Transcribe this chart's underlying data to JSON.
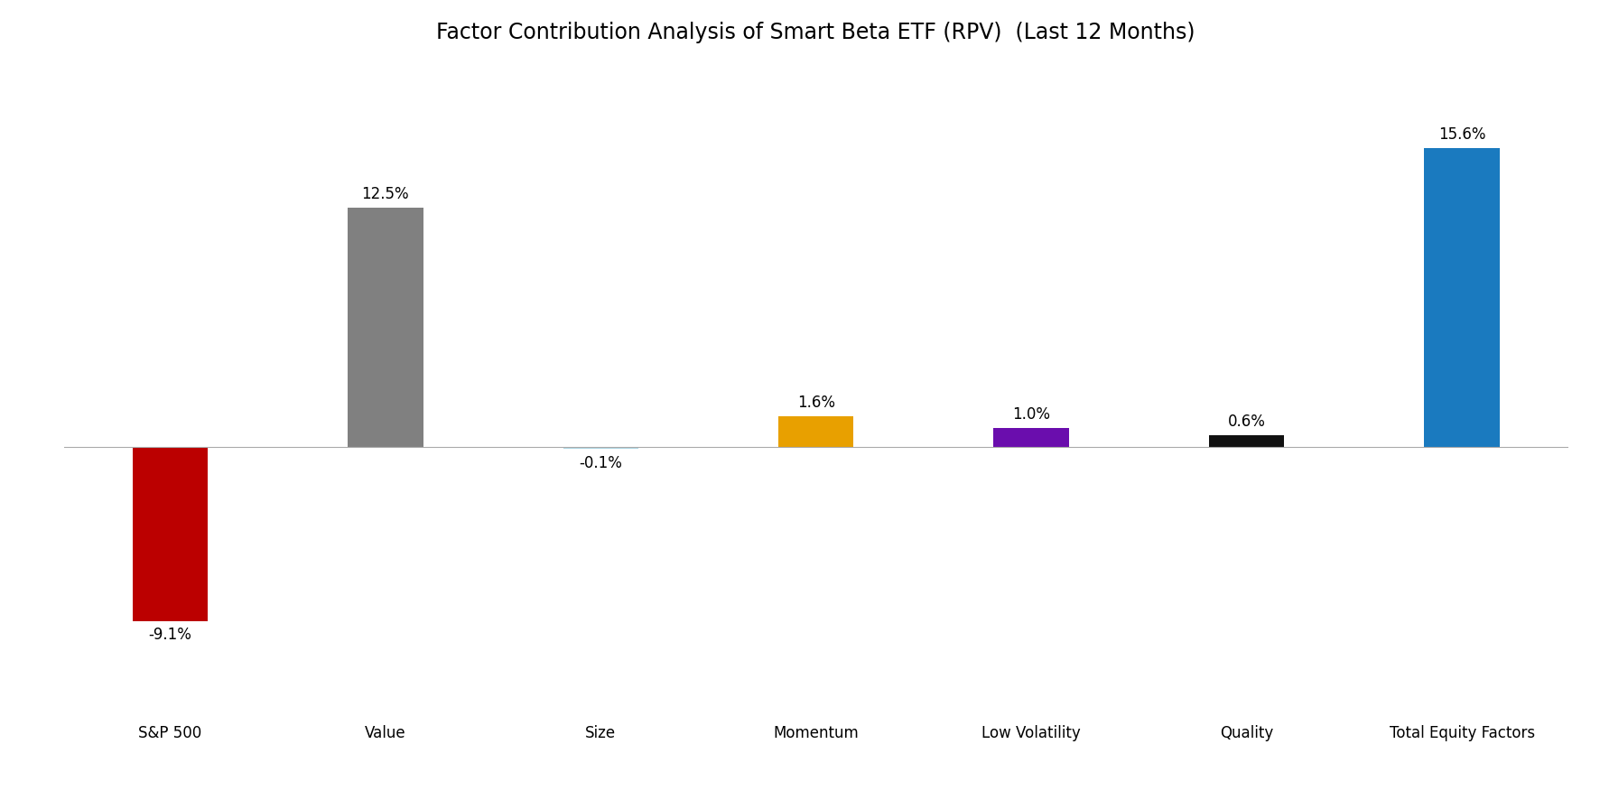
{
  "title": "Factor Contribution Analysis of Smart Beta ETF (RPV)  (Last 12 Months)",
  "categories": [
    "S&P 500",
    "Value",
    "Size",
    "Momentum",
    "Low Volatility",
    "Quality",
    "Total Equity Factors"
  ],
  "values": [
    -9.1,
    12.5,
    -0.1,
    1.6,
    1.0,
    0.6,
    15.6
  ],
  "labels": [
    "-9.1%",
    "12.5%",
    "-0.1%",
    "1.6%",
    "1.0%",
    "0.6%",
    "15.6%"
  ],
  "bar_colors": [
    "#bb0000",
    "#808080",
    "#add8e6",
    "#e8a000",
    "#6a0dad",
    "#111111",
    "#1a7abf"
  ],
  "background_color": "#ffffff",
  "title_fontsize": 17,
  "label_fontsize": 12,
  "tick_fontsize": 12,
  "ylim": [
    -13,
    20
  ],
  "figsize": [
    17.72,
    8.86
  ],
  "dpi": 100,
  "bar_width": 0.35
}
